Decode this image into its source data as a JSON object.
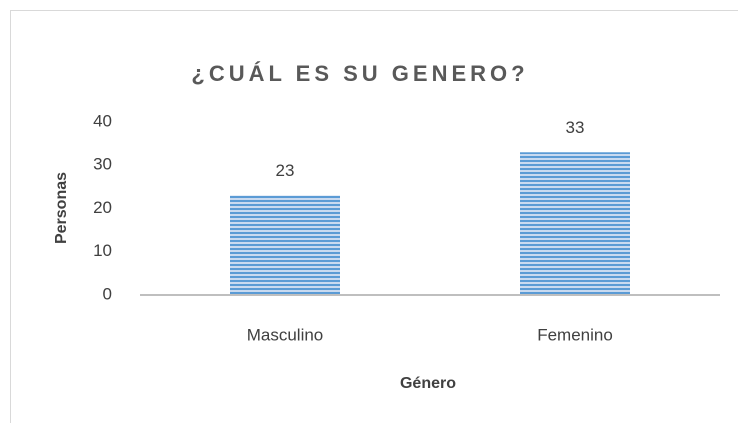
{
  "chart_data": {
    "type": "bar",
    "title": "¿CUÁL ES SU GENERO?",
    "x_label": "Género",
    "y_label": "Personas",
    "categories": [
      "Masculino",
      "Femenino"
    ],
    "values": [
      23,
      33
    ],
    "color": "#5b9bd5",
    "ylim": [
      0,
      40
    ],
    "yticks": [
      0,
      10,
      20,
      30,
      40
    ],
    "grid": false
  }
}
